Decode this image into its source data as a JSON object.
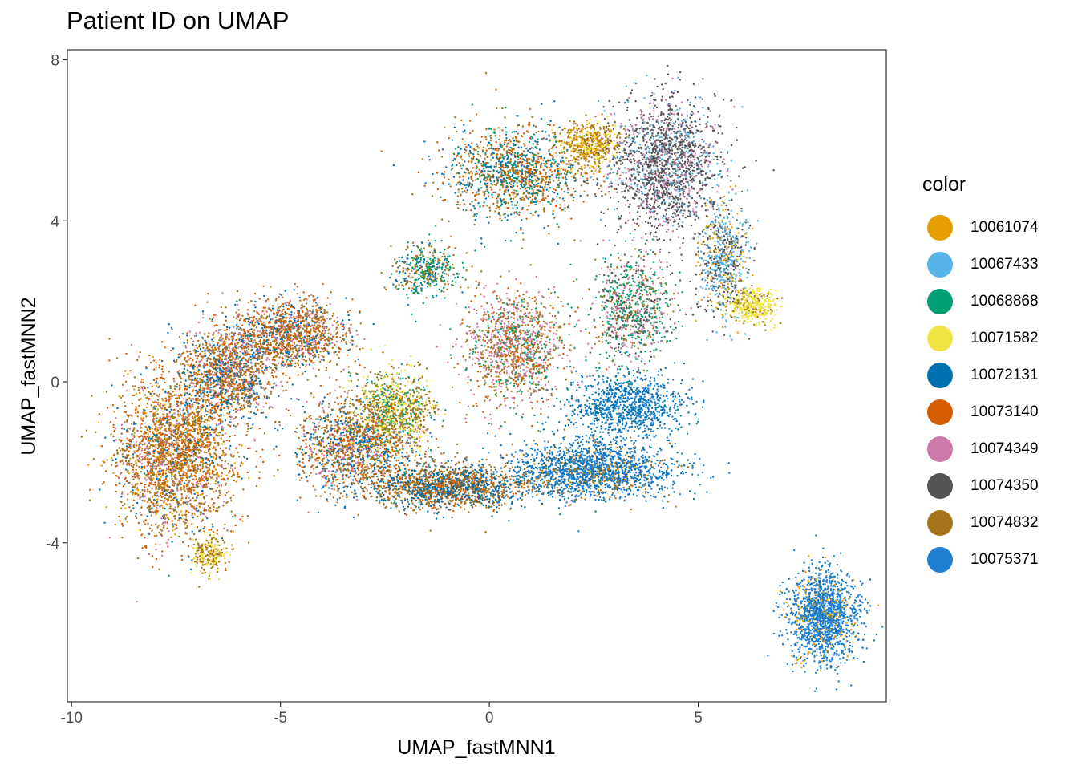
{
  "chart_data": {
    "type": "scatter",
    "title": "Patient ID on UMAP",
    "xlabel": "UMAP_fastMNN1",
    "ylabel": "UMAP_fastMNN2",
    "xlim": [
      -10.1,
      9.5
    ],
    "ylim": [
      -7.95,
      8.25
    ],
    "x_ticks": [
      -10,
      -5,
      0,
      5
    ],
    "y_ticks": [
      -4,
      0,
      4,
      8
    ],
    "grid": false,
    "legend_title": "color",
    "legend_position": "right",
    "series": [
      {
        "name": "10061074",
        "color": "#E69F00"
      },
      {
        "name": "10067433",
        "color": "#56B4E9"
      },
      {
        "name": "10068868",
        "color": "#009E73"
      },
      {
        "name": "10071582",
        "color": "#F0E442"
      },
      {
        "name": "10072131",
        "color": "#0072B2"
      },
      {
        "name": "10073140",
        "color": "#D55E00"
      },
      {
        "name": "10074349",
        "color": "#CC79A7"
      },
      {
        "name": "10074350",
        "color": "#555555"
      },
      {
        "name": "10074832",
        "color": "#A6761D"
      },
      {
        "name": "10075371",
        "color": "#1F7FD1"
      }
    ],
    "regions": [
      {
        "center": [
          -7.5,
          -1.8
        ],
        "spread": [
          1.0,
          1.4
        ],
        "points": 2600,
        "mix": {
          "10073140": 3,
          "10074832": 3,
          "10072131": 1,
          "10074349": 1,
          "10061074": 1
        }
      },
      {
        "center": [
          -6.3,
          0.2
        ],
        "spread": [
          0.8,
          0.8
        ],
        "points": 1300,
        "mix": {
          "10073140": 2,
          "10074832": 2,
          "10072131": 2,
          "10074349": 1
        }
      },
      {
        "center": [
          -4.8,
          1.2
        ],
        "spread": [
          1.0,
          0.6
        ],
        "points": 1300,
        "mix": {
          "10073140": 2,
          "10074832": 2,
          "10074349": 1,
          "10072131": 1
        }
      },
      {
        "center": [
          -3.2,
          -1.6
        ],
        "spread": [
          1.0,
          0.8
        ],
        "points": 1400,
        "mix": {
          "10074832": 2,
          "10073140": 2,
          "10072131": 2,
          "10074349": 1
        }
      },
      {
        "center": [
          -2.3,
          -0.7
        ],
        "spread": [
          0.7,
          0.7
        ],
        "points": 900,
        "mix": {
          "10074832": 3,
          "10071582": 2,
          "10068868": 1
        }
      },
      {
        "center": [
          -1.0,
          -2.6
        ],
        "spread": [
          1.4,
          0.4
        ],
        "points": 1600,
        "mix": {
          "10074832": 2,
          "10072131": 2,
          "10074350": 1,
          "10073140": 1
        }
      },
      {
        "center": [
          0.6,
          0.8
        ],
        "spread": [
          0.9,
          1.0
        ],
        "points": 1200,
        "mix": {
          "10074832": 2,
          "10074349": 2,
          "10073140": 1,
          "10068868": 1
        }
      },
      {
        "center": [
          2.5,
          -2.2
        ],
        "spread": [
          1.4,
          0.5
        ],
        "points": 1700,
        "mix": {
          "10075371": 3,
          "10072131": 2,
          "10074832": 1
        }
      },
      {
        "center": [
          3.3,
          -0.6
        ],
        "spread": [
          1.0,
          0.6
        ],
        "points": 900,
        "mix": {
          "10072131": 3,
          "10075371": 2
        }
      },
      {
        "center": [
          3.4,
          1.8
        ],
        "spread": [
          0.7,
          1.0
        ],
        "points": 800,
        "mix": {
          "10068868": 2,
          "10074350": 1,
          "10074832": 1,
          "10074349": 1
        }
      },
      {
        "center": [
          0.6,
          5.2
        ],
        "spread": [
          1.2,
          0.8
        ],
        "points": 1300,
        "mix": {
          "10072131": 2,
          "10073140": 2,
          "10074832": 2,
          "10068868": 1
        }
      },
      {
        "center": [
          -1.5,
          2.8
        ],
        "spread": [
          0.6,
          0.5
        ],
        "points": 400,
        "mix": {
          "10074832": 2,
          "10068868": 2,
          "10072131": 1
        }
      },
      {
        "center": [
          2.4,
          5.9
        ],
        "spread": [
          0.5,
          0.4
        ],
        "points": 500,
        "mix": {
          "10074832": 2,
          "10061074": 2,
          "10071582": 1
        }
      },
      {
        "center": [
          4.2,
          5.4
        ],
        "spread": [
          0.9,
          1.2
        ],
        "points": 1700,
        "mix": {
          "10074350": 4,
          "10074349": 1,
          "10067433": 1
        }
      },
      {
        "center": [
          5.6,
          3.0
        ],
        "spread": [
          0.4,
          1.0
        ],
        "points": 700,
        "mix": {
          "10074350": 2,
          "10067433": 2,
          "10061074": 1
        }
      },
      {
        "center": [
          6.3,
          1.9
        ],
        "spread": [
          0.4,
          0.3
        ],
        "points": 400,
        "mix": {
          "10071582": 3,
          "10074832": 1
        }
      },
      {
        "center": [
          -6.7,
          -4.3
        ],
        "spread": [
          0.3,
          0.3
        ],
        "points": 250,
        "mix": {
          "10074832": 2,
          "10071582": 2
        }
      },
      {
        "center": [
          8.0,
          -5.8
        ],
        "spread": [
          0.6,
          0.8
        ],
        "points": 1500,
        "mix": {
          "10075371": 8,
          "10061074": 1,
          "10072131": 1
        }
      }
    ]
  }
}
